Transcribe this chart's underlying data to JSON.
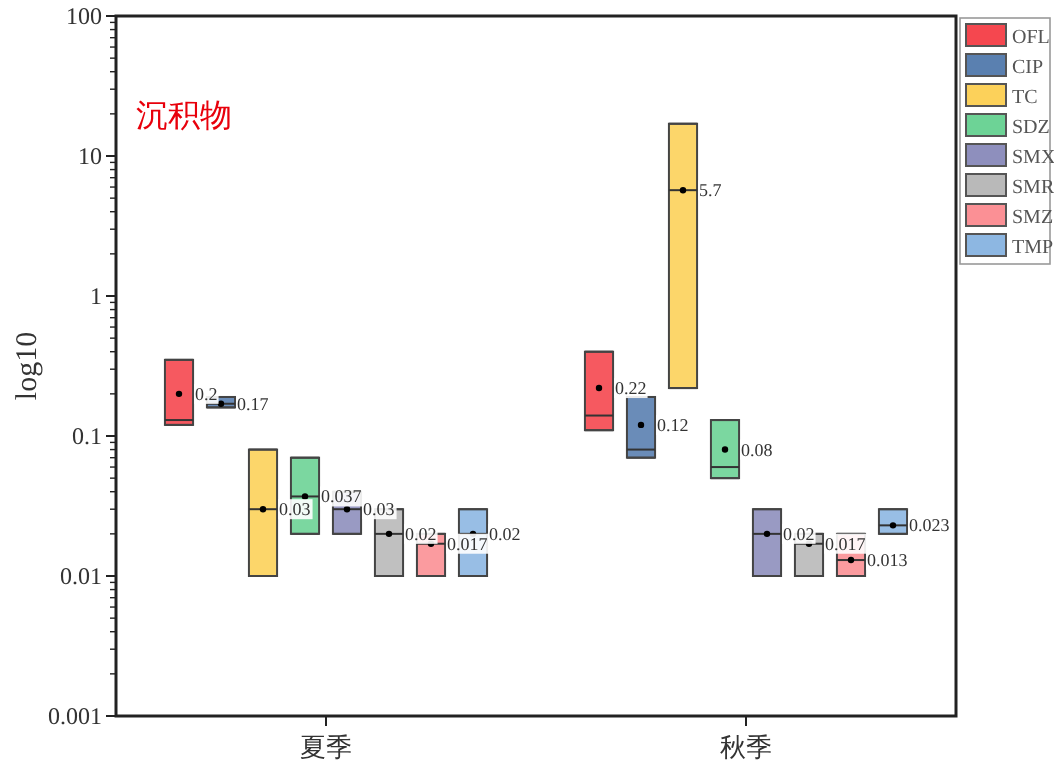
{
  "chart_data": {
    "type": "box",
    "annotations": [
      "沉积物"
    ],
    "ylabel": "log10",
    "categories": [
      "夏季",
      "秋季"
    ],
    "ylim": [
      0.001,
      100
    ],
    "yticks": [
      0.001,
      0.01,
      0.1,
      1,
      10,
      100
    ],
    "log": true,
    "legend": "top right",
    "grid": false,
    "series": [
      {
        "name": "OFL",
        "color": "#f5474f",
        "boxes": [
          {
            "low": 0.12,
            "q1": 0.12,
            "median": 0.13,
            "q3": 0.35,
            "high": 0.35,
            "mean": 0.2
          },
          {
            "low": 0.11,
            "q1": 0.11,
            "median": 0.14,
            "q3": 0.4,
            "high": 0.4,
            "mean": 0.22
          }
        ],
        "value_labels": [
          "0.2",
          "0.22"
        ]
      },
      {
        "name": "CIP",
        "color": "#5a80b0",
        "boxes": [
          {
            "low": 0.16,
            "q1": 0.16,
            "median": 0.17,
            "q3": 0.19,
            "high": 0.19,
            "mean": 0.17
          },
          {
            "low": 0.07,
            "q1": 0.07,
            "median": 0.08,
            "q3": 0.19,
            "high": 0.19,
            "mean": 0.12
          }
        ],
        "value_labels": [
          "0.17",
          "0.12"
        ]
      },
      {
        "name": "TC",
        "color": "#fcd15a",
        "boxes": [
          {
            "low": 0.01,
            "q1": 0.01,
            "median": 0.03,
            "q3": 0.08,
            "high": 0.08,
            "mean": 0.03
          },
          {
            "low": 0.22,
            "q1": 0.22,
            "median": 5.7,
            "q3": 17,
            "high": 17,
            "mean": 5.7
          }
        ],
        "value_labels": [
          "0.03",
          "5.7"
        ]
      },
      {
        "name": "SDZ",
        "color": "#6dd396",
        "boxes": [
          {
            "low": 0.02,
            "q1": 0.02,
            "median": 0.037,
            "q3": 0.07,
            "high": 0.07,
            "mean": 0.037
          },
          {
            "low": 0.05,
            "q1": 0.05,
            "median": 0.06,
            "q3": 0.13,
            "high": 0.13,
            "mean": 0.08
          }
        ],
        "value_labels": [
          "0.037",
          "0.08"
        ]
      },
      {
        "name": "SMX",
        "color": "#8e8fbd",
        "boxes": [
          {
            "low": 0.02,
            "q1": 0.02,
            "median": 0.03,
            "q3": 0.04,
            "high": 0.04,
            "mean": 0.03
          },
          {
            "low": 0.01,
            "q1": 0.01,
            "median": 0.02,
            "q3": 0.03,
            "high": 0.03,
            "mean": 0.02
          }
        ],
        "value_labels": [
          "0.03",
          "0.02"
        ]
      },
      {
        "name": "SMR",
        "color": "#b9b9b9",
        "boxes": [
          {
            "low": 0.01,
            "q1": 0.01,
            "median": 0.02,
            "q3": 0.03,
            "high": 0.03,
            "mean": 0.02
          },
          {
            "low": 0.01,
            "q1": 0.01,
            "median": 0.017,
            "q3": 0.02,
            "high": 0.02,
            "mean": 0.017
          }
        ],
        "value_labels": [
          "0.02",
          "0.017"
        ]
      },
      {
        "name": "SMZ",
        "color": "#fb9095",
        "boxes": [
          {
            "low": 0.01,
            "q1": 0.01,
            "median": 0.017,
            "q3": 0.02,
            "high": 0.02,
            "mean": 0.017
          },
          {
            "low": 0.01,
            "q1": 0.01,
            "median": 0.013,
            "q3": 0.02,
            "high": 0.02,
            "mean": 0.013
          }
        ],
        "value_labels": [
          "0.017",
          "0.013"
        ]
      },
      {
        "name": "TMP",
        "color": "#8db7e2",
        "boxes": [
          {
            "low": 0.01,
            "q1": 0.01,
            "median": 0.02,
            "q3": 0.03,
            "high": 0.03,
            "mean": 0.02
          },
          {
            "low": 0.02,
            "q1": 0.02,
            "median": 0.023,
            "q3": 0.03,
            "high": 0.03,
            "mean": 0.023
          }
        ],
        "value_labels": [
          "0.02",
          "0.023"
        ]
      }
    ]
  }
}
